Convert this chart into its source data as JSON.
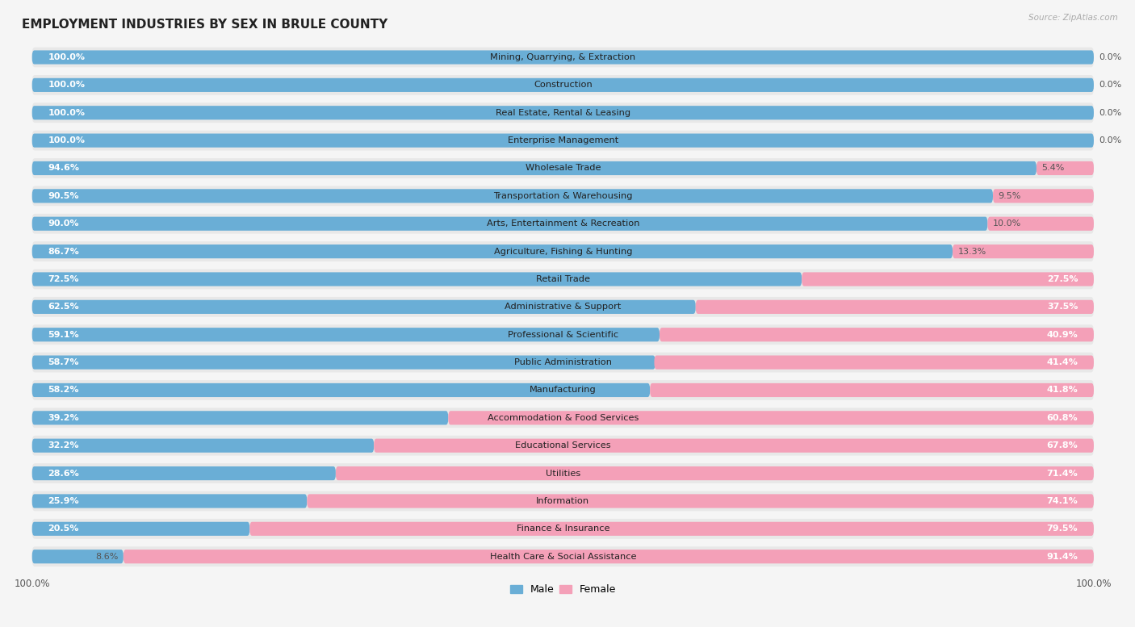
{
  "title": "EMPLOYMENT INDUSTRIES BY SEX IN BRULE COUNTY",
  "source": "Source: ZipAtlas.com",
  "categories": [
    "Mining, Quarrying, & Extraction",
    "Construction",
    "Real Estate, Rental & Leasing",
    "Enterprise Management",
    "Wholesale Trade",
    "Transportation & Warehousing",
    "Arts, Entertainment & Recreation",
    "Agriculture, Fishing & Hunting",
    "Retail Trade",
    "Administrative & Support",
    "Professional & Scientific",
    "Public Administration",
    "Manufacturing",
    "Accommodation & Food Services",
    "Educational Services",
    "Utilities",
    "Information",
    "Finance & Insurance",
    "Health Care & Social Assistance"
  ],
  "male": [
    100.0,
    100.0,
    100.0,
    100.0,
    94.6,
    90.5,
    90.0,
    86.7,
    72.5,
    62.5,
    59.1,
    58.7,
    58.2,
    39.2,
    32.2,
    28.6,
    25.9,
    20.5,
    8.6
  ],
  "female": [
    0.0,
    0.0,
    0.0,
    0.0,
    5.4,
    9.5,
    10.0,
    13.3,
    27.5,
    37.5,
    40.9,
    41.4,
    41.8,
    60.8,
    67.8,
    71.4,
    74.1,
    79.5,
    91.4
  ],
  "male_color": "#6aaed6",
  "female_color": "#f4a0b8",
  "male_label_color_inside": "#ffffff",
  "male_label_color_outside": "#555555",
  "female_label_color_inside": "#ffffff",
  "female_label_color_outside": "#555555",
  "row_bg_color": "#e8e8e8",
  "background_color": "#f5f5f5",
  "title_fontsize": 11,
  "label_fontsize": 8.2,
  "value_fontsize": 8.0,
  "inside_threshold_male": 15,
  "inside_threshold_female": 15
}
